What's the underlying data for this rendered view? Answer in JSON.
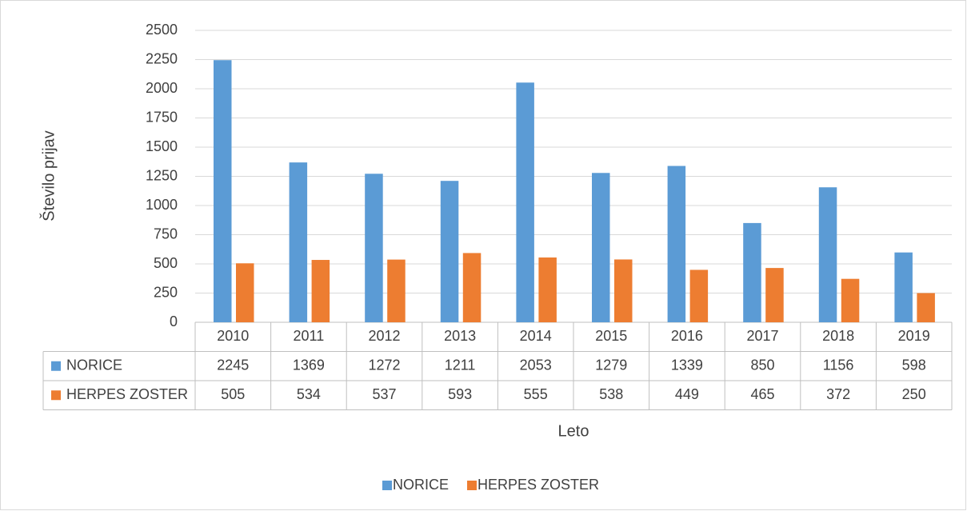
{
  "chart_data": {
    "type": "bar",
    "categories": [
      "2010",
      "2011",
      "2012",
      "2013",
      "2014",
      "2015",
      "2016",
      "2017",
      "2018",
      "2019"
    ],
    "series": [
      {
        "name": "NORICE",
        "color": "#5b9bd5",
        "values": [
          2245,
          1369,
          1272,
          1211,
          2053,
          1279,
          1339,
          850,
          1156,
          598
        ]
      },
      {
        "name": "HERPES ZOSTER",
        "color": "#ed7d31",
        "values": [
          505,
          534,
          537,
          593,
          555,
          538,
          449,
          465,
          372,
          250
        ]
      }
    ],
    "y_label": "Število prijav",
    "x_label": "Leto",
    "ylim": [
      0,
      2500
    ],
    "yticks": [
      0,
      250,
      500,
      750,
      1000,
      1250,
      1500,
      1750,
      2000,
      2250,
      2500
    ],
    "grid": true,
    "legend": "bottom"
  }
}
